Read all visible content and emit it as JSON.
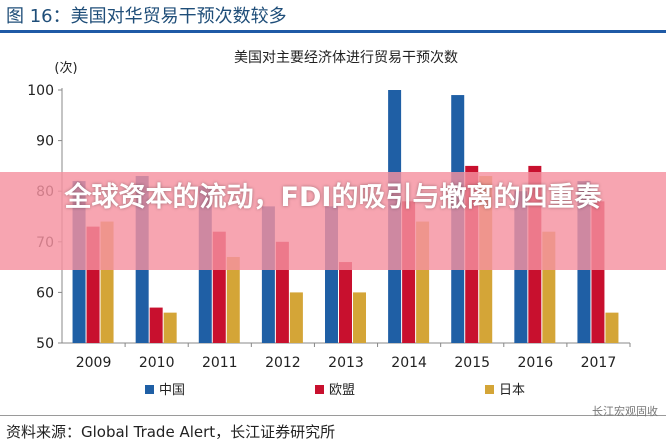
{
  "figure_title": "图 16：美国对华贸易干预次数较多",
  "overlay_title": "全球资本的流动，FDI的吸引与撤离的四重奏",
  "source": "资料来源：Global Trade Alert，长江证券研究所",
  "watermark": "长江宏观固收",
  "chart_data": {
    "type": "bar",
    "title": "美国对主要经济体进行贸易干预次数",
    "ylabel": "(次)",
    "xlabel": "",
    "ylim": [
      50,
      100
    ],
    "yticks": [
      50,
      60,
      70,
      80,
      90,
      100
    ],
    "grid": false,
    "legend_position": "bottom",
    "categories": [
      "2009",
      "2010",
      "2011",
      "2012",
      "2013",
      "2014",
      "2015",
      "2016",
      "2017"
    ],
    "series": [
      {
        "name": "中国",
        "color": "#1f5fa5",
        "values": [
          82,
          83,
          81,
          77,
          77,
          100,
          99,
          80,
          82
        ]
      },
      {
        "name": "欧盟",
        "color": "#c8102e",
        "values": [
          73,
          57,
          72,
          70,
          66,
          78,
          85,
          85,
          78
        ]
      },
      {
        "name": "日本",
        "color": "#d4a537",
        "values": [
          74,
          56,
          67,
          60,
          60,
          74,
          83,
          72,
          56
        ]
      }
    ]
  }
}
